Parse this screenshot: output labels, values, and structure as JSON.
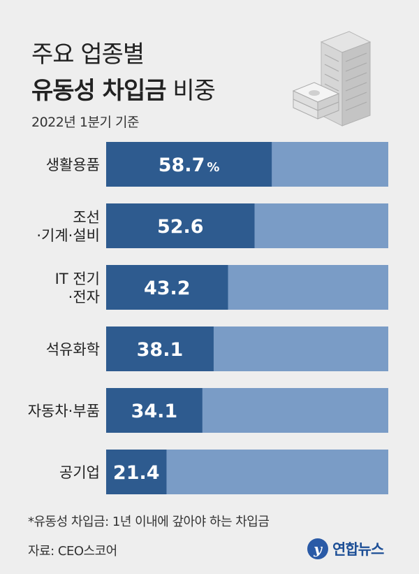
{
  "header": {
    "title_line1": "주요 업종별",
    "title_line2_bold": "유동성 차입금",
    "title_line2_light": "비중",
    "subtitle": "2022년 1분기 기준"
  },
  "footer": {
    "footnote": "*유동성 차입금: 1년 이내에 갚아야 하는 차입금",
    "source": "자료: CEO스코어",
    "logo_mark": "y",
    "logo_text": "연합뉴스"
  },
  "chart_data": {
    "type": "bar",
    "orientation": "horizontal",
    "title": "주요 업종별 유동성 차입금 비중",
    "subtitle": "2022년 1분기 기준",
    "categories": [
      [
        "생활용품"
      ],
      [
        "조선",
        "·기계·설비"
      ],
      [
        "IT 전기",
        "·전자"
      ],
      [
        "석유화학"
      ],
      [
        "자동차·부품"
      ],
      [
        "공기업"
      ]
    ],
    "values": [
      58.7,
      52.6,
      43.2,
      38.1,
      34.1,
      21.4
    ],
    "value_labels": [
      "58.7",
      "52.6",
      "43.2",
      "38.1",
      "34.1",
      "21.4"
    ],
    "unit": "%",
    "xlim": [
      0,
      100
    ],
    "colors": {
      "value": "#2e5b8f",
      "remainder": "#7a9cc6"
    }
  }
}
